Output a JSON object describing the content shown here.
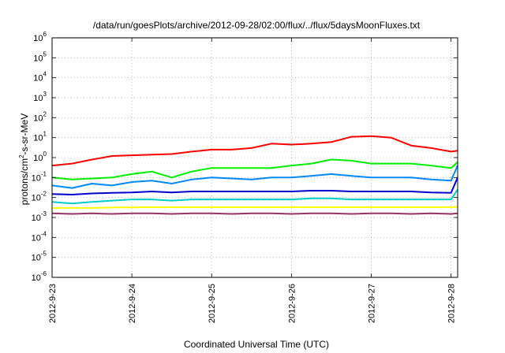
{
  "chart_data": {
    "type": "line",
    "title": "/data/run/goesPlots/archive/2012-09-28/02:00/flux/../flux/5daysMoonFluxes.txt",
    "xlabel": "Coordinated Universal Time (UTC)",
    "ylabel": "protons/cm2-s-sr-MeV",
    "yscale": "log",
    "xlim": [
      "2012-09-23 00:00",
      "2012-09-28 02:00"
    ],
    "ylim": [
      1e-06,
      1000000.0
    ],
    "x_ticks": [
      "2012-9-23",
      "2012-9-24",
      "2012-9-25",
      "2012-9-26",
      "2012-9-27",
      "2012-9-28"
    ],
    "y_ticks": [
      {
        "exp": "-6",
        "value": 1e-06
      },
      {
        "exp": "-5",
        "value": 1e-05
      },
      {
        "exp": "-4",
        "value": 0.0001
      },
      {
        "exp": "-3",
        "value": 0.001
      },
      {
        "exp": "-2",
        "value": 0.01
      },
      {
        "exp": "-1",
        "value": 0.1
      },
      {
        "exp": "0",
        "value": 1
      },
      {
        "exp": "1",
        "value": 10
      },
      {
        "exp": "2",
        "value": 100
      },
      {
        "exp": "3",
        "value": 1000
      },
      {
        "exp": "4",
        "value": 10000
      },
      {
        "exp": "5",
        "value": 100000
      },
      {
        "exp": "6",
        "value": 1000000
      }
    ],
    "grid": true,
    "legend": "none",
    "series": [
      {
        "color": "#ff0000",
        "x": [
          "2012-9-23 00:00",
          "2012-9-23 06:00",
          "2012-9-23 12:00",
          "2012-9-23 18:00",
          "2012-9-24 00:00",
          "2012-9-24 06:00",
          "2012-9-24 12:00",
          "2012-9-24 18:00",
          "2012-9-25 00:00",
          "2012-9-25 06:00",
          "2012-9-25 12:00",
          "2012-9-25 18:00",
          "2012-9-26 00:00",
          "2012-9-26 06:00",
          "2012-9-26 12:00",
          "2012-9-26 18:00",
          "2012-9-27 00:00",
          "2012-9-27 06:00",
          "2012-9-27 12:00",
          "2012-9-27 18:00",
          "2012-9-28 00:00",
          "2012-9-28 02:00"
        ],
        "values": [
          0.4,
          0.5,
          0.8,
          1.2,
          1.3,
          1.4,
          1.5,
          2.0,
          2.5,
          2.5,
          3.0,
          5.0,
          4.5,
          5.0,
          6.0,
          11.0,
          12.0,
          10.0,
          4.0,
          3.0,
          2.0,
          2.2
        ]
      },
      {
        "color": "#00ee00",
        "x": [
          "2012-9-23 00:00",
          "2012-9-23 06:00",
          "2012-9-23 12:00",
          "2012-9-23 18:00",
          "2012-9-24 00:00",
          "2012-9-24 06:00",
          "2012-9-24 12:00",
          "2012-9-24 18:00",
          "2012-9-25 00:00",
          "2012-9-25 06:00",
          "2012-9-25 12:00",
          "2012-9-25 18:00",
          "2012-9-26 00:00",
          "2012-9-26 06:00",
          "2012-9-26 12:00",
          "2012-9-26 18:00",
          "2012-9-27 00:00",
          "2012-9-27 06:00",
          "2012-9-27 12:00",
          "2012-9-27 18:00",
          "2012-9-28 00:00",
          "2012-9-28 02:00"
        ],
        "values": [
          0.1,
          0.08,
          0.09,
          0.1,
          0.15,
          0.2,
          0.1,
          0.2,
          0.3,
          0.3,
          0.3,
          0.3,
          0.4,
          0.5,
          0.8,
          0.7,
          0.5,
          0.5,
          0.5,
          0.4,
          0.3,
          0.6
        ]
      },
      {
        "color": "#0088ff",
        "x": [
          "2012-9-23 00:00",
          "2012-9-23 06:00",
          "2012-9-23 12:00",
          "2012-9-23 18:00",
          "2012-9-24 00:00",
          "2012-9-24 06:00",
          "2012-9-24 12:00",
          "2012-9-24 18:00",
          "2012-9-25 00:00",
          "2012-9-25 06:00",
          "2012-9-25 12:00",
          "2012-9-25 18:00",
          "2012-9-26 00:00",
          "2012-9-26 06:00",
          "2012-9-26 12:00",
          "2012-9-26 18:00",
          "2012-9-27 00:00",
          "2012-9-27 06:00",
          "2012-9-27 12:00",
          "2012-9-27 18:00",
          "2012-9-28 00:00",
          "2012-9-28 02:00"
        ],
        "values": [
          0.04,
          0.03,
          0.05,
          0.04,
          0.06,
          0.07,
          0.05,
          0.08,
          0.1,
          0.09,
          0.08,
          0.1,
          0.1,
          0.12,
          0.15,
          0.12,
          0.1,
          0.1,
          0.1,
          0.08,
          0.07,
          0.4
        ]
      },
      {
        "color": "#0000cc",
        "x": [
          "2012-9-23 00:00",
          "2012-9-23 06:00",
          "2012-9-23 12:00",
          "2012-9-23 18:00",
          "2012-9-24 00:00",
          "2012-9-24 06:00",
          "2012-9-24 12:00",
          "2012-9-24 18:00",
          "2012-9-25 00:00",
          "2012-9-25 06:00",
          "2012-9-25 12:00",
          "2012-9-25 18:00",
          "2012-9-26 00:00",
          "2012-9-26 06:00",
          "2012-9-26 12:00",
          "2012-9-26 18:00",
          "2012-9-27 00:00",
          "2012-9-27 06:00",
          "2012-9-27 12:00",
          "2012-9-27 18:00",
          "2012-9-28 00:00",
          "2012-9-28 02:00"
        ],
        "values": [
          0.015,
          0.014,
          0.016,
          0.017,
          0.018,
          0.02,
          0.018,
          0.02,
          0.02,
          0.02,
          0.02,
          0.02,
          0.02,
          0.022,
          0.022,
          0.02,
          0.02,
          0.02,
          0.02,
          0.018,
          0.017,
          0.1
        ]
      },
      {
        "color": "#00cccc",
        "x": [
          "2012-9-23 00:00",
          "2012-9-23 06:00",
          "2012-9-23 12:00",
          "2012-9-23 18:00",
          "2012-9-24 00:00",
          "2012-9-24 06:00",
          "2012-9-24 12:00",
          "2012-9-24 18:00",
          "2012-9-25 00:00",
          "2012-9-25 06:00",
          "2012-9-25 12:00",
          "2012-9-25 18:00",
          "2012-9-26 00:00",
          "2012-9-26 06:00",
          "2012-9-26 12:00",
          "2012-9-26 18:00",
          "2012-9-27 00:00",
          "2012-9-27 06:00",
          "2012-9-27 12:00",
          "2012-9-27 18:00",
          "2012-9-28 00:00",
          "2012-9-28 02:00"
        ],
        "values": [
          0.006,
          0.005,
          0.006,
          0.007,
          0.008,
          0.008,
          0.007,
          0.008,
          0.008,
          0.008,
          0.008,
          0.008,
          0.008,
          0.009,
          0.009,
          0.008,
          0.008,
          0.008,
          0.008,
          0.008,
          0.008,
          0.025
        ]
      },
      {
        "color": "#ffff00",
        "x": [
          "2012-9-23 00:00",
          "2012-9-23 06:00",
          "2012-9-23 12:00",
          "2012-9-23 18:00",
          "2012-9-24 00:00",
          "2012-9-24 06:00",
          "2012-9-24 12:00",
          "2012-9-24 18:00",
          "2012-9-25 00:00",
          "2012-9-25 06:00",
          "2012-9-25 12:00",
          "2012-9-25 18:00",
          "2012-9-26 00:00",
          "2012-9-26 06:00",
          "2012-9-26 12:00",
          "2012-9-26 18:00",
          "2012-9-27 00:00",
          "2012-9-27 06:00",
          "2012-9-27 12:00",
          "2012-9-27 18:00",
          "2012-9-28 00:00",
          "2012-9-28 02:00"
        ],
        "values": [
          0.003,
          0.003,
          0.003,
          0.0032,
          0.0032,
          0.0033,
          0.0033,
          0.0033,
          0.0033,
          0.0033,
          0.0033,
          0.0033,
          0.0033,
          0.0033,
          0.0033,
          0.0033,
          0.0033,
          0.0033,
          0.0033,
          0.0033,
          0.0033,
          0.0034
        ]
      },
      {
        "color": "#993366",
        "x": [
          "2012-9-23 00:00",
          "2012-9-23 06:00",
          "2012-9-23 12:00",
          "2012-9-23 18:00",
          "2012-9-24 00:00",
          "2012-9-24 06:00",
          "2012-9-24 12:00",
          "2012-9-24 18:00",
          "2012-9-25 00:00",
          "2012-9-25 06:00",
          "2012-9-25 12:00",
          "2012-9-25 18:00",
          "2012-9-26 00:00",
          "2012-9-26 06:00",
          "2012-9-26 12:00",
          "2012-9-26 18:00",
          "2012-9-27 00:00",
          "2012-9-27 06:00",
          "2012-9-27 12:00",
          "2012-9-27 18:00",
          "2012-9-28 00:00",
          "2012-9-28 02:00"
        ],
        "values": [
          0.0016,
          0.0015,
          0.0016,
          0.0015,
          0.0016,
          0.0016,
          0.0015,
          0.0016,
          0.0016,
          0.0015,
          0.0016,
          0.0016,
          0.0015,
          0.0016,
          0.0016,
          0.0015,
          0.0016,
          0.0016,
          0.0015,
          0.0016,
          0.0015,
          0.0016
        ]
      }
    ]
  }
}
